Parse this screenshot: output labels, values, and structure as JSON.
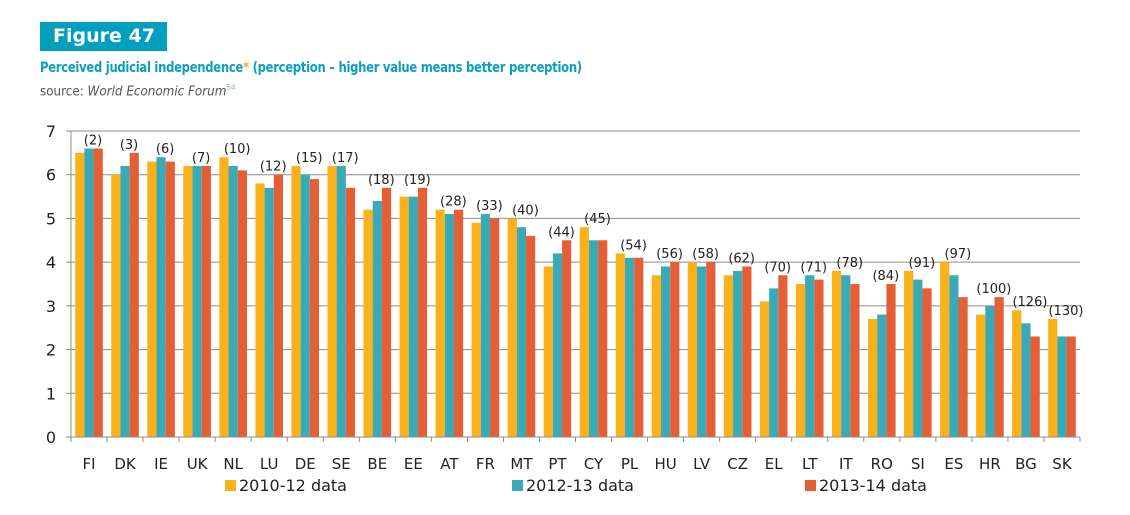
{
  "figure": {
    "badge": "Figure 47",
    "title_main": "Perceived judicial independence",
    "title_asterisk": "*",
    "title_rest": " (perception – higher value means better perception)",
    "source_prefix": "source: ",
    "source_name": "World Economic Forum",
    "source_footnote": "54"
  },
  "chart_data": {
    "type": "bar",
    "title": "Perceived judicial independence* (perception – higher value means better perception)",
    "xlabel": "",
    "ylabel": "",
    "ylim": [
      0,
      7
    ],
    "yticks": [
      0,
      1,
      2,
      3,
      4,
      5,
      6,
      7
    ],
    "grid": true,
    "legend_position": "bottom",
    "categories": [
      "FI",
      "DK",
      "IE",
      "UK",
      "NL",
      "LU",
      "DE",
      "SE",
      "BE",
      "EE",
      "AT",
      "FR",
      "MT",
      "PT",
      "CY",
      "PL",
      "HU",
      "LV",
      "CZ",
      "EL",
      "LT",
      "IT",
      "RO",
      "SI",
      "ES",
      "HR",
      "BG",
      "SK"
    ],
    "rank_labels": [
      "(2)",
      "(3)",
      "(6)",
      "(7)",
      "(10)",
      "(12)",
      "(15)",
      "(17)",
      "(18)",
      "(19)",
      "(28)",
      "(33)",
      "(40)",
      "(44)",
      "(45)",
      "(54)",
      "(56)",
      "(58)",
      "(62)",
      "(70)",
      "(71)",
      "(78)",
      "(84)",
      "(91)",
      "(97)",
      "(100)",
      "(126)",
      "(130)"
    ],
    "series": [
      {
        "name": "2010-12 data",
        "color": "#fbb11a",
        "values": [
          6.5,
          6.0,
          6.3,
          6.2,
          6.4,
          5.8,
          6.2,
          6.2,
          5.2,
          5.5,
          5.2,
          4.9,
          5.0,
          3.9,
          4.8,
          4.2,
          3.7,
          4.0,
          3.7,
          3.1,
          3.5,
          3.8,
          2.7,
          3.8,
          4.0,
          2.8,
          2.9,
          2.7
        ]
      },
      {
        "name": "2012-13 data",
        "color": "#3aaab6",
        "values": [
          6.6,
          6.2,
          6.4,
          6.2,
          6.2,
          5.7,
          6.0,
          6.2,
          5.4,
          5.5,
          5.1,
          5.1,
          4.8,
          4.2,
          4.5,
          4.1,
          3.9,
          3.9,
          3.8,
          3.4,
          3.7,
          3.7,
          2.8,
          3.6,
          3.7,
          3.0,
          2.6,
          2.3
        ]
      },
      {
        "name": "2013-14 data",
        "color": "#e55f36",
        "values": [
          6.6,
          6.5,
          6.3,
          6.2,
          6.1,
          6.0,
          5.9,
          5.7,
          5.7,
          5.7,
          5.2,
          5.0,
          4.6,
          4.5,
          4.5,
          4.1,
          4.0,
          4.0,
          3.9,
          3.7,
          3.6,
          3.5,
          3.5,
          3.4,
          3.2,
          3.2,
          2.3,
          2.3
        ]
      }
    ]
  }
}
